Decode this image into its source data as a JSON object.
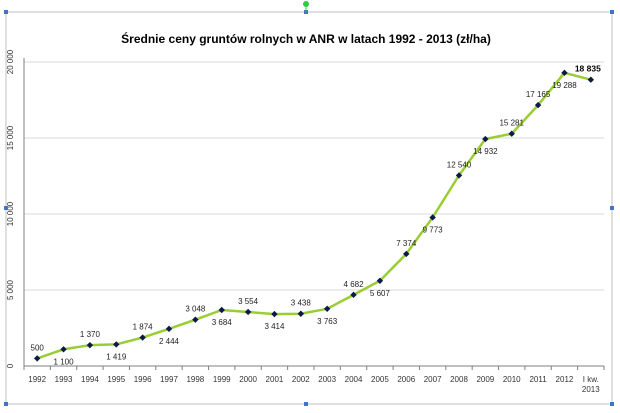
{
  "chart_data": {
    "type": "line",
    "title": "Średnie ceny gruntów rolnych w ANR w latach 1992 - 2013 (zł/ha)",
    "xlabel": "",
    "ylabel": "",
    "categories": [
      "1992",
      "1993",
      "1994",
      "1995",
      "1996",
      "1997",
      "1998",
      "1999",
      "2000",
      "2001",
      "2002",
      "2003",
      "2004",
      "2005",
      "2006",
      "2007",
      "2008",
      "2009",
      "2010",
      "2011",
      "2012",
      "I kw. 2013"
    ],
    "series": [
      {
        "name": "",
        "values": [
          500,
          1100,
          1370,
          1419,
          1874,
          2444,
          3048,
          3684,
          3554,
          3414,
          3438,
          3763,
          4682,
          5607,
          7374,
          9773,
          12540,
          14932,
          15281,
          17165,
          19288,
          18835
        ]
      }
    ],
    "data_labels": [
      "500",
      "1 100",
      "1 370",
      "1 419",
      "1 874",
      "2 444",
      "3 048",
      "3 684",
      "3 554",
      "3 414",
      "3 438",
      "3 763",
      "4 682",
      "5 607",
      "7 374",
      "9 773",
      "12 540",
      "14 932",
      "15 281",
      "17 165",
      "19 288",
      "18 835"
    ],
    "label_position": [
      "above",
      "below",
      "above",
      "below",
      "above",
      "below",
      "above",
      "below",
      "above",
      "below",
      "above",
      "below",
      "above",
      "below",
      "above",
      "below",
      "above",
      "below",
      "above",
      "above",
      "below",
      "above"
    ],
    "y_ticks": [
      "0",
      "5 000",
      "10 000",
      "15 000",
      "20 000"
    ],
    "y_tick_values": [
      0,
      5000,
      10000,
      15000,
      20000
    ],
    "ylim": [
      0,
      20000
    ],
    "grid": true,
    "legend": "none",
    "colors": {
      "line": "#9ACD32",
      "marker": "#0B1A4A",
      "grid": "#d9d9d9",
      "axis": "#7f7f7f",
      "frame": "#bfbfbf",
      "handle": "#4472C4",
      "rotate_handle": "#2ecc40"
    }
  }
}
